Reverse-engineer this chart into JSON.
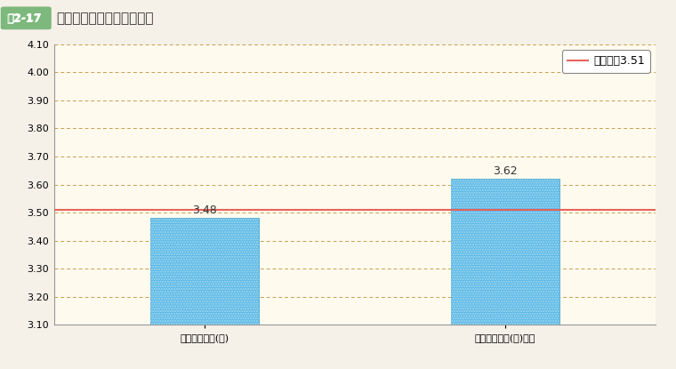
{
  "title_badge": "図2-17",
  "title_text": "　俸給表別の回答の平均値",
  "categories": [
    "行政職俸給表(一)",
    "行政職俸給表(一)以外"
  ],
  "values": [
    3.48,
    3.62
  ],
  "bar_color": "#5BB8E8",
  "ylim": [
    3.1,
    4.1
  ],
  "yticks": [
    3.1,
    3.2,
    3.3,
    3.4,
    3.5,
    3.6,
    3.7,
    3.8,
    3.9,
    4.0,
    4.1
  ],
  "hline_value": 3.51,
  "hline_color": "#E8635A",
  "hline_label": "総平均値3.51",
  "grid_color": "#C8A050",
  "bg_color": "#FEFAEE",
  "fig_bg_color": "#F5F0E8",
  "bar_width": 0.18,
  "x_positions": [
    0.25,
    0.75
  ],
  "xlim": [
    0,
    1
  ],
  "value_fontsize": 9,
  "tick_fontsize": 8,
  "legend_fontsize": 9,
  "title_fontsize": 11,
  "badge_fontsize": 9,
  "badge_color": "#7DB87D",
  "badge_text_color": "#ffffff",
  "title_color": "#333333"
}
